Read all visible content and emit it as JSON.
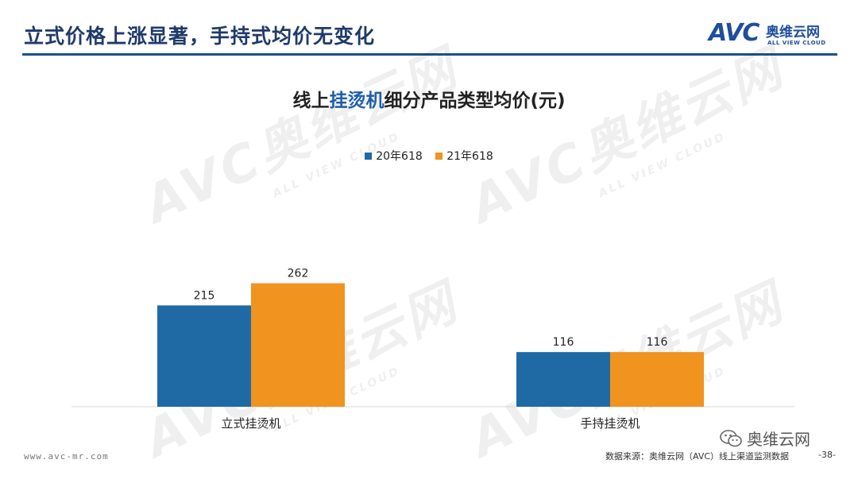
{
  "header": {
    "title": "立式价格上涨显著，手持式均价无变化"
  },
  "logo": {
    "mark": "AVC",
    "name_cn": "奥维云网",
    "name_en": "ALL VIEW CLOUD"
  },
  "watermark": {
    "mark": "AVC",
    "name_cn": "奥维云网",
    "name_en": "ALL VIEW CLOUD"
  },
  "chart_title": {
    "prefix": "线上",
    "highlight": "挂烫机",
    "suffix": "细分产品类型均价(元)"
  },
  "colors": {
    "brand": "#1f4e9c",
    "series_20": "#1f6aa5",
    "series_21": "#f0931f"
  },
  "chart_data": {
    "type": "bar",
    "title": "线上挂烫机细分产品类型均价(元)",
    "categories": [
      "立式挂烫机",
      "手持挂烫机"
    ],
    "series": [
      {
        "name": "20年618",
        "values": [
          215,
          116
        ],
        "color": "#1f6aa5"
      },
      {
        "name": "21年618",
        "values": [
          262,
          116
        ],
        "color": "#f0931f"
      }
    ],
    "xlabel": "",
    "ylabel": "",
    "ylim": [
      0,
      300
    ],
    "grid": false,
    "legend": "top-center",
    "data_labels": true
  },
  "footer": {
    "url": "www.avc-mr.com",
    "source": "数据来源：奥维云网（AVC）线上渠道监测数据",
    "page": "-38-",
    "wechat": "奥维云网"
  }
}
